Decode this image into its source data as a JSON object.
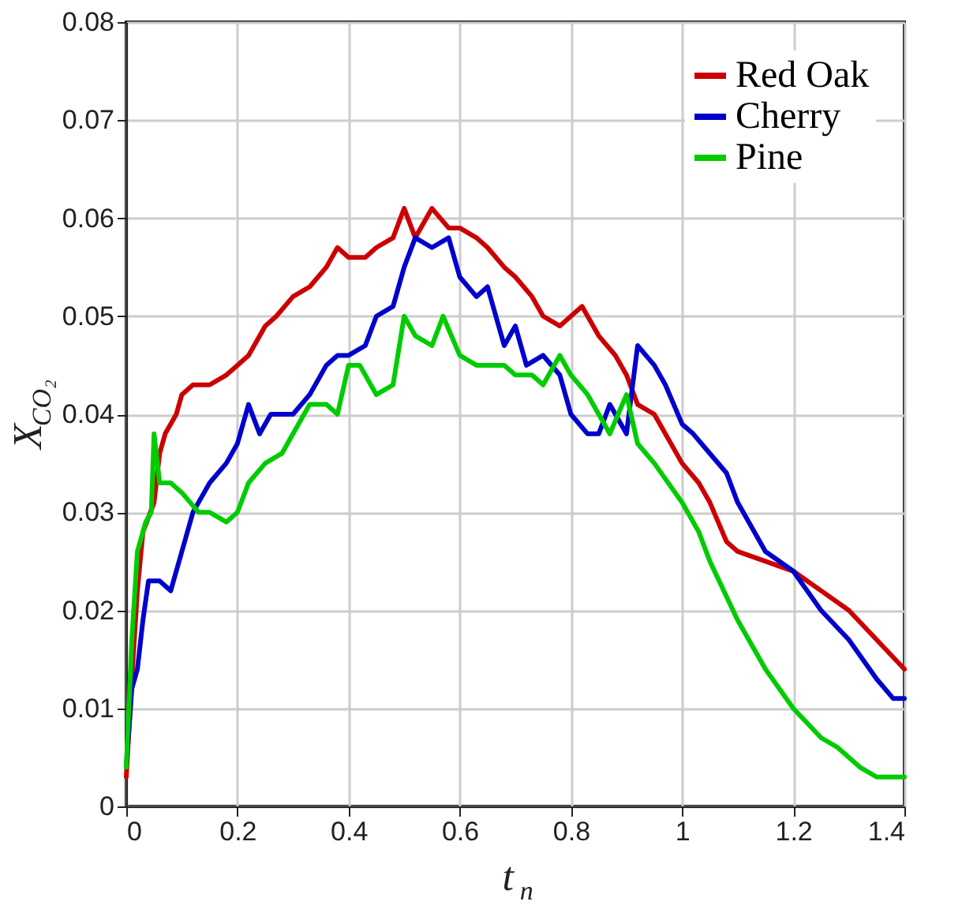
{
  "chart_data": {
    "type": "line",
    "xlabel": "t$_{n}$",
    "ylabel": "X$_{CO₂}$",
    "xlim": [
      0,
      1.4
    ],
    "xticks": [
      0,
      0.2,
      0.4,
      0.6,
      0.8,
      1,
      1.2,
      1.4
    ],
    "ylim": [
      0,
      0.08
    ],
    "yticks": [
      0,
      0.01,
      0.02,
      0.03,
      0.04,
      0.05,
      0.06,
      0.07,
      0.08
    ],
    "grid": true,
    "legend": "top right",
    "line_style": "solid",
    "marker": "none",
    "series": [
      {
        "name": "Red Oak",
        "color": "#cc0000",
        "x": [
          0,
          0.01,
          0.02,
          0.03,
          0.05,
          0.06,
          0.07,
          0.09,
          0.1,
          0.12,
          0.15,
          0.18,
          0.2,
          0.22,
          0.25,
          0.27,
          0.3,
          0.33,
          0.36,
          0.38,
          0.4,
          0.43,
          0.45,
          0.48,
          0.5,
          0.52,
          0.55,
          0.58,
          0.6,
          0.63,
          0.65,
          0.68,
          0.7,
          0.73,
          0.75,
          0.78,
          0.8,
          0.82,
          0.85,
          0.88,
          0.9,
          0.92,
          0.95,
          1.0,
          1.03,
          1.05,
          1.08,
          1.1,
          1.15,
          1.2,
          1.25,
          1.3,
          1.35,
          1.4
        ],
        "values": [
          0.003,
          0.013,
          0.022,
          0.028,
          0.031,
          0.036,
          0.038,
          0.04,
          0.042,
          0.043,
          0.043,
          0.044,
          0.045,
          0.046,
          0.049,
          0.05,
          0.052,
          0.053,
          0.055,
          0.057,
          0.056,
          0.056,
          0.057,
          0.058,
          0.061,
          0.058,
          0.061,
          0.059,
          0.059,
          0.058,
          0.057,
          0.055,
          0.054,
          0.052,
          0.05,
          0.049,
          0.05,
          0.051,
          0.048,
          0.046,
          0.044,
          0.041,
          0.04,
          0.035,
          0.033,
          0.031,
          0.027,
          0.026,
          0.025,
          0.024,
          0.022,
          0.02,
          0.017,
          0.014
        ]
      },
      {
        "name": "Cherry",
        "color": "#0000cc",
        "x": [
          0,
          0.01,
          0.02,
          0.03,
          0.04,
          0.06,
          0.08,
          0.1,
          0.12,
          0.15,
          0.18,
          0.2,
          0.22,
          0.24,
          0.26,
          0.3,
          0.33,
          0.36,
          0.38,
          0.4,
          0.43,
          0.45,
          0.48,
          0.5,
          0.52,
          0.55,
          0.58,
          0.6,
          0.63,
          0.65,
          0.68,
          0.7,
          0.72,
          0.75,
          0.78,
          0.8,
          0.83,
          0.85,
          0.87,
          0.9,
          0.92,
          0.95,
          0.97,
          1.0,
          1.02,
          1.05,
          1.08,
          1.1,
          1.15,
          1.2,
          1.25,
          1.3,
          1.35,
          1.38,
          1.4
        ],
        "values": [
          0.004,
          0.012,
          0.014,
          0.019,
          0.023,
          0.023,
          0.022,
          0.026,
          0.03,
          0.033,
          0.035,
          0.037,
          0.041,
          0.038,
          0.04,
          0.04,
          0.042,
          0.045,
          0.046,
          0.046,
          0.047,
          0.05,
          0.051,
          0.055,
          0.058,
          0.057,
          0.058,
          0.054,
          0.052,
          0.053,
          0.047,
          0.049,
          0.045,
          0.046,
          0.044,
          0.04,
          0.038,
          0.038,
          0.041,
          0.038,
          0.047,
          0.045,
          0.043,
          0.039,
          0.038,
          0.036,
          0.034,
          0.031,
          0.026,
          0.024,
          0.02,
          0.017,
          0.013,
          0.011,
          0.011
        ]
      },
      {
        "name": "Pine",
        "color": "#00cc00",
        "x": [
          0,
          0.01,
          0.02,
          0.035,
          0.045,
          0.05,
          0.06,
          0.08,
          0.1,
          0.13,
          0.15,
          0.18,
          0.2,
          0.22,
          0.25,
          0.28,
          0.3,
          0.33,
          0.36,
          0.38,
          0.4,
          0.42,
          0.45,
          0.48,
          0.5,
          0.52,
          0.55,
          0.57,
          0.6,
          0.63,
          0.65,
          0.68,
          0.7,
          0.73,
          0.75,
          0.78,
          0.8,
          0.83,
          0.85,
          0.87,
          0.9,
          0.92,
          0.95,
          1.0,
          1.03,
          1.05,
          1.1,
          1.15,
          1.2,
          1.25,
          1.28,
          1.32,
          1.35,
          1.4
        ],
        "values": [
          0.004,
          0.017,
          0.026,
          0.029,
          0.03,
          0.038,
          0.033,
          0.033,
          0.032,
          0.03,
          0.03,
          0.029,
          0.03,
          0.033,
          0.035,
          0.036,
          0.038,
          0.041,
          0.041,
          0.04,
          0.045,
          0.045,
          0.042,
          0.043,
          0.05,
          0.048,
          0.047,
          0.05,
          0.046,
          0.045,
          0.045,
          0.045,
          0.044,
          0.044,
          0.043,
          0.046,
          0.044,
          0.042,
          0.04,
          0.038,
          0.042,
          0.037,
          0.035,
          0.031,
          0.028,
          0.025,
          0.019,
          0.014,
          0.01,
          0.007,
          0.006,
          0.004,
          0.003,
          0.003
        ]
      }
    ]
  }
}
